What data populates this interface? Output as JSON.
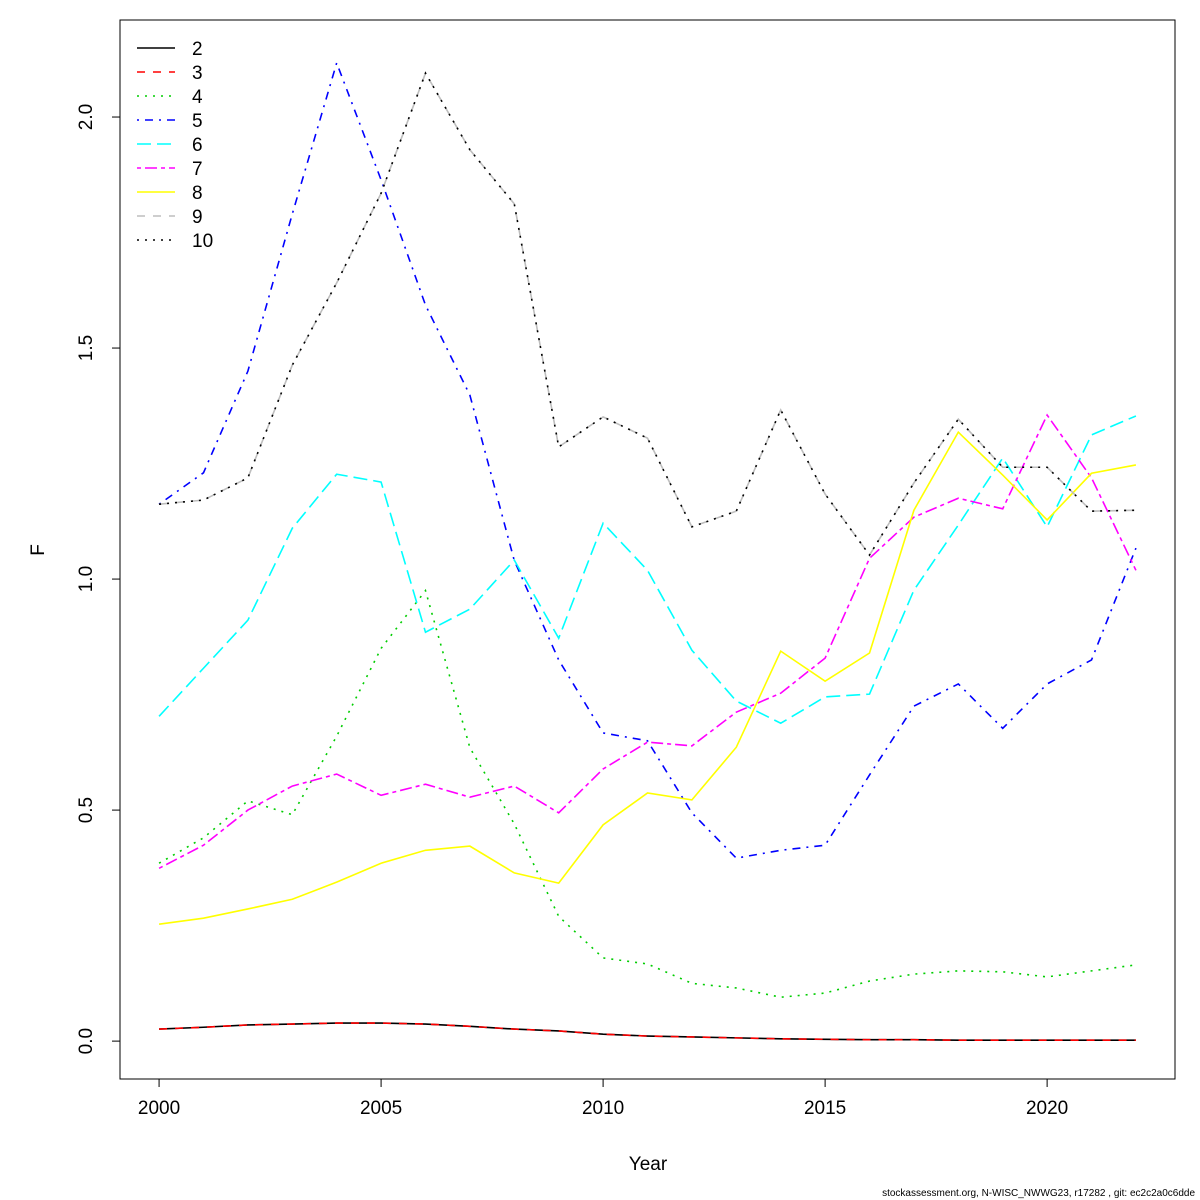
{
  "chart_data": {
    "type": "line",
    "x_label": "Year",
    "y_label": "F",
    "footer": "stockassessment.org, N-WISC_NWWG23, r17282 , git: ec2c2a0c6dde",
    "x": [
      2000,
      2001,
      2002,
      2003,
      2004,
      2005,
      2006,
      2007,
      2008,
      2009,
      2010,
      2011,
      2012,
      2013,
      2014,
      2015,
      2016,
      2017,
      2018,
      2019,
      2020,
      2021,
      2022
    ],
    "xlim": [
      1999.12,
      2022.88
    ],
    "xticks": [
      2000,
      2005,
      2010,
      2015,
      2020
    ],
    "ylim": [
      -0.082,
      2.21
    ],
    "yticks": [
      {
        "value": 0,
        "label": "0.0"
      },
      0.5,
      {
        "value": 1,
        "label": "1.0"
      },
      1.5,
      {
        "value": 2,
        "label": "2.0"
      }
    ],
    "legend": "top-left",
    "series": [
      {
        "name": "2",
        "color": "#000000",
        "dash": "solid",
        "values": [
          0.026,
          0.03,
          0.035,
          0.037,
          0.039,
          0.039,
          0.037,
          0.032,
          0.026,
          0.022,
          0.015,
          0.011,
          0.009,
          0.007,
          0.005,
          0.004,
          0.003,
          0.003,
          0.002,
          0.002,
          0.002,
          0.002,
          0.002
        ]
      },
      {
        "name": "3",
        "color": "#ff0000",
        "dash": "dashed",
        "values": [
          0.026,
          0.03,
          0.035,
          0.037,
          0.039,
          0.039,
          0.037,
          0.032,
          0.026,
          0.022,
          0.015,
          0.011,
          0.009,
          0.007,
          0.005,
          0.004,
          0.003,
          0.003,
          0.002,
          0.002,
          0.002,
          0.002,
          0.002
        ]
      },
      {
        "name": "4",
        "color": "#00cd00",
        "dash": "dotted",
        "values": [
          0.385,
          0.44,
          0.52,
          0.49,
          0.66,
          0.85,
          0.975,
          0.635,
          0.47,
          0.27,
          0.18,
          0.167,
          0.125,
          0.115,
          0.095,
          0.104,
          0.13,
          0.145,
          0.152,
          0.15,
          0.139,
          0.152,
          0.165
        ]
      },
      {
        "name": "5",
        "color": "#0000ff",
        "dash": "dotdash",
        "values": [
          1.162,
          1.23,
          1.45,
          1.79,
          2.117,
          1.864,
          1.593,
          1.398,
          1.04,
          0.825,
          0.667,
          0.65,
          0.494,
          0.396,
          0.413,
          0.424,
          0.576,
          0.725,
          0.773,
          0.677,
          0.773,
          0.825,
          1.067
        ]
      },
      {
        "name": "6",
        "color": "#00ffff",
        "dash": "longdash",
        "values": [
          0.703,
          0.807,
          0.911,
          1.11,
          1.227,
          1.21,
          0.885,
          0.935,
          1.041,
          0.872,
          1.121,
          1.019,
          0.846,
          0.736,
          0.688,
          0.745,
          0.751,
          0.976,
          1.117,
          1.262,
          1.113,
          1.312,
          1.353
        ]
      },
      {
        "name": "7",
        "color": "#ff00ff",
        "dash": "twodash",
        "values": [
          0.374,
          0.424,
          0.5,
          0.552,
          0.578,
          0.532,
          0.556,
          0.528,
          0.552,
          0.494,
          0.589,
          0.647,
          0.639,
          0.712,
          0.753,
          0.829,
          1.045,
          1.134,
          1.175,
          1.152,
          1.355,
          1.219,
          1.019
        ]
      },
      {
        "name": "8",
        "color": "#ffff00",
        "dash": "solid",
        "values": [
          0.253,
          0.266,
          0.286,
          0.307,
          0.344,
          0.385,
          0.413,
          0.422,
          0.364,
          0.342,
          0.468,
          0.537,
          0.522,
          0.636,
          0.844,
          0.779,
          0.84,
          1.149,
          1.318,
          1.225,
          1.128,
          1.229,
          1.247
        ]
      },
      {
        "name": "9",
        "color": "#bebebe",
        "dash": "dashed",
        "values": [
          1.162,
          1.171,
          1.219,
          1.463,
          1.641,
          1.835,
          2.095,
          1.929,
          1.812,
          1.286,
          1.351,
          1.305,
          1.113,
          1.147,
          1.366,
          1.184,
          1.052,
          1.208,
          1.346,
          1.242,
          1.242,
          1.147,
          1.149
        ]
      },
      {
        "name": "10",
        "color": "#000000",
        "dash": "dotted",
        "values": [
          1.162,
          1.171,
          1.219,
          1.463,
          1.641,
          1.835,
          2.095,
          1.929,
          1.812,
          1.286,
          1.351,
          1.305,
          1.113,
          1.147,
          1.366,
          1.184,
          1.052,
          1.208,
          1.346,
          1.242,
          1.242,
          1.147,
          1.149
        ]
      }
    ]
  }
}
